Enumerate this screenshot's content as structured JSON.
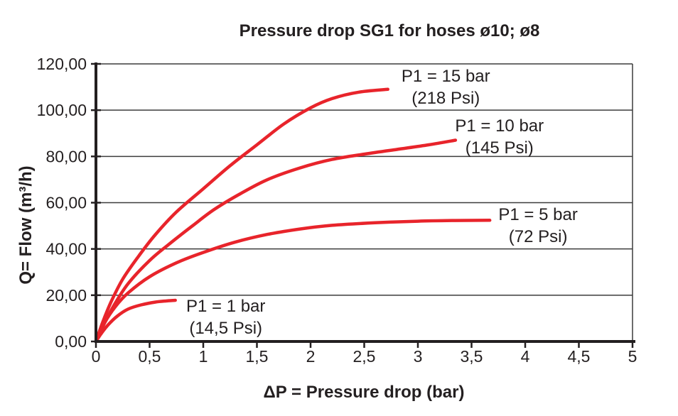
{
  "chart_data": {
    "type": "line",
    "title": "Pressure drop SG1 for hoses ø10; ø8",
    "xlabel": "ΔP = Pressure drop (bar)",
    "ylabel": "Q= Flow (m³/h)",
    "xlim": [
      0,
      5
    ],
    "ylim": [
      0,
      120
    ],
    "grid": "horizontal gridlines every 20, plot framed top and right",
    "legend_position": "labels beside each curve end",
    "colors": {
      "curve": "#e8242b",
      "axis": "#231f20",
      "gridline": "#3c3c3c",
      "text": "#231f20",
      "background": "#ffffff"
    },
    "xticks": {
      "values": [
        0,
        0.5,
        1,
        1.5,
        2,
        2.5,
        3,
        3.5,
        4,
        4.5,
        5
      ],
      "labels": [
        "0",
        "0,5",
        "1",
        "1,5",
        "2",
        "2,5",
        "3",
        "3,5",
        "4",
        "4,5",
        "5"
      ]
    },
    "yticks": {
      "values": [
        0,
        20,
        40,
        60,
        80,
        100,
        120
      ],
      "labels": [
        "0,00",
        "20,00",
        "40,00",
        "60,00",
        "80,00",
        "100,00",
        "120,00"
      ]
    },
    "series": [
      {
        "id": "p1-15-bar",
        "label_lines": [
          "P1 = 15 bar",
          "(218 Psi)"
        ],
        "label_anchor": {
          "x": 3.26,
          "y": 114.8
        },
        "points": [
          [
            0,
            0
          ],
          [
            0.06,
            8
          ],
          [
            0.14,
            17
          ],
          [
            0.25,
            27
          ],
          [
            0.4,
            37
          ],
          [
            0.55,
            46
          ],
          [
            0.75,
            56
          ],
          [
            1.0,
            66
          ],
          [
            1.25,
            76
          ],
          [
            1.5,
            85
          ],
          [
            1.75,
            94
          ],
          [
            2.0,
            101
          ],
          [
            2.2,
            105
          ],
          [
            2.45,
            107.8
          ],
          [
            2.72,
            109
          ]
        ]
      },
      {
        "id": "p1-10-bar",
        "label_lines": [
          "P1 = 10 bar",
          "(145 Psi)"
        ],
        "label_anchor": {
          "x": 3.76,
          "y": 93.3
        },
        "points": [
          [
            0,
            0
          ],
          [
            0.07,
            7
          ],
          [
            0.16,
            15
          ],
          [
            0.3,
            25
          ],
          [
            0.5,
            35
          ],
          [
            0.68,
            42
          ],
          [
            0.9,
            50
          ],
          [
            1.1,
            57
          ],
          [
            1.35,
            64
          ],
          [
            1.6,
            70
          ],
          [
            1.9,
            75
          ],
          [
            2.2,
            78.7
          ],
          [
            2.5,
            81
          ],
          [
            2.8,
            83
          ],
          [
            3.1,
            85
          ],
          [
            3.35,
            87
          ]
        ]
      },
      {
        "id": "p1-5-bar",
        "label_lines": [
          "P1 = 5 bar",
          "(72 Psi)"
        ],
        "label_anchor": {
          "x": 4.12,
          "y": 54.9
        },
        "points": [
          [
            0,
            0
          ],
          [
            0.08,
            8
          ],
          [
            0.18,
            15
          ],
          [
            0.3,
            21
          ],
          [
            0.5,
            28
          ],
          [
            0.75,
            34
          ],
          [
            1.0,
            38.5
          ],
          [
            1.3,
            43
          ],
          [
            1.6,
            46.3
          ],
          [
            1.9,
            48.6
          ],
          [
            2.2,
            50.2
          ],
          [
            2.6,
            51.3
          ],
          [
            3.0,
            52
          ],
          [
            3.35,
            52.3
          ],
          [
            3.67,
            52.4
          ]
        ]
      },
      {
        "id": "p1-1-bar",
        "label_lines": [
          "P1 = 1 bar",
          "(14,5 Psi)"
        ],
        "label_anchor": {
          "x": 1.21,
          "y": 15.3
        },
        "points": [
          [
            0,
            0
          ],
          [
            0.05,
            3.5
          ],
          [
            0.12,
            7.5
          ],
          [
            0.2,
            11
          ],
          [
            0.3,
            14
          ],
          [
            0.42,
            15.8
          ],
          [
            0.55,
            17
          ],
          [
            0.65,
            17.5
          ],
          [
            0.74,
            17.8
          ]
        ]
      }
    ]
  }
}
